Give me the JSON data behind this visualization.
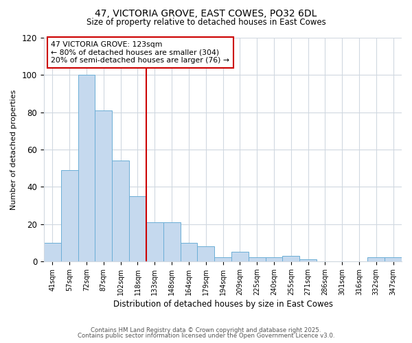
{
  "title": "47, VICTORIA GROVE, EAST COWES, PO32 6DL",
  "subtitle": "Size of property relative to detached houses in East Cowes",
  "xlabel": "Distribution of detached houses by size in East Cowes",
  "ylabel": "Number of detached properties",
  "bar_labels": [
    "41sqm",
    "57sqm",
    "72sqm",
    "87sqm",
    "102sqm",
    "118sqm",
    "133sqm",
    "148sqm",
    "164sqm",
    "179sqm",
    "194sqm",
    "209sqm",
    "225sqm",
    "240sqm",
    "255sqm",
    "271sqm",
    "286sqm",
    "301sqm",
    "316sqm",
    "332sqm",
    "347sqm"
  ],
  "bar_heights": [
    10,
    49,
    100,
    81,
    54,
    35,
    21,
    21,
    10,
    8,
    2,
    5,
    2,
    2,
    3,
    1,
    0,
    0,
    0,
    2,
    2
  ],
  "bar_color": "#C5D9EE",
  "bar_edge_color": "#6BAED6",
  "ylim": [
    0,
    120
  ],
  "yticks": [
    0,
    20,
    40,
    60,
    80,
    100,
    120
  ],
  "property_line_x": 5.5,
  "property_line_color": "#CC0000",
  "annotation_title": "47 VICTORIA GROVE: 123sqm",
  "annotation_line1": "← 80% of detached houses are smaller (304)",
  "annotation_line2": "20% of semi-detached houses are larger (76) →",
  "annotation_box_facecolor": "#ffffff",
  "annotation_box_edge": "#CC0000",
  "footer1": "Contains HM Land Registry data © Crown copyright and database right 2025.",
  "footer2": "Contains public sector information licensed under the Open Government Licence v3.0.",
  "fig_background": "#ffffff",
  "plot_background": "#ffffff",
  "grid_color": "#d0d8e0"
}
